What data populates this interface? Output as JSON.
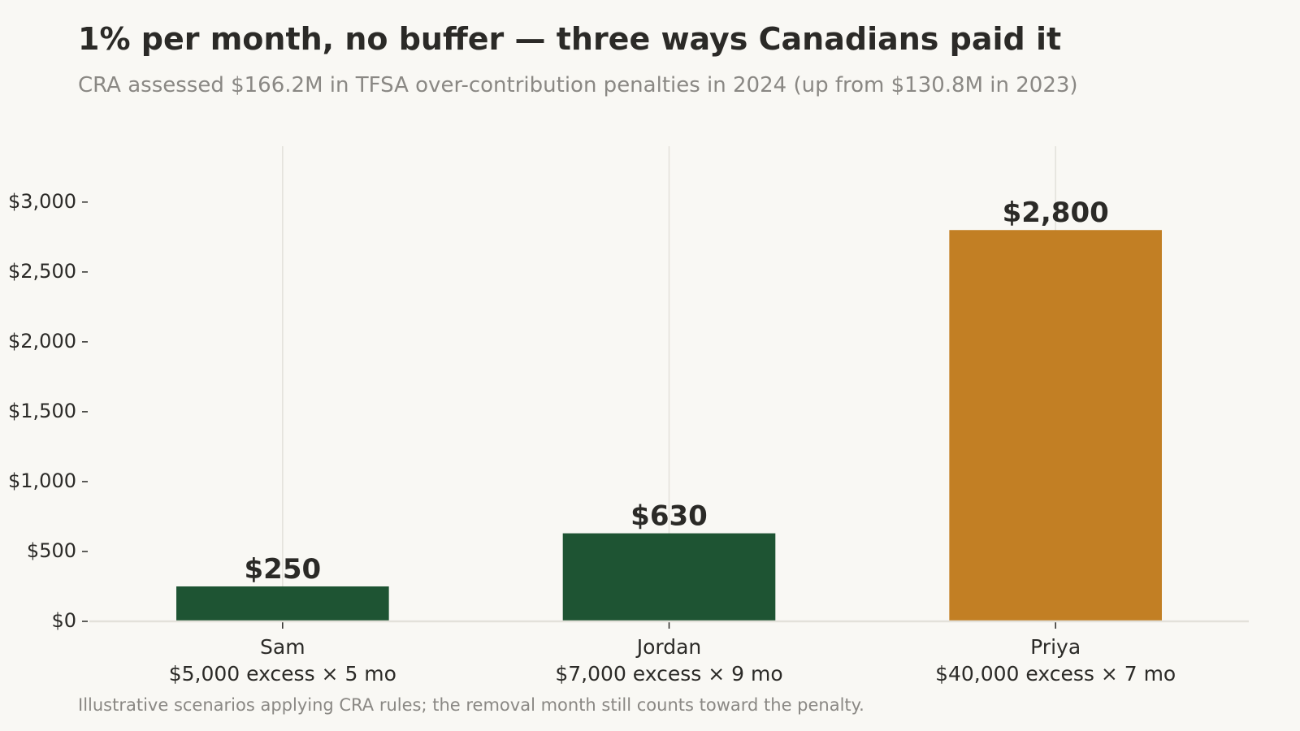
{
  "chart_data": {
    "type": "bar",
    "title": "1% per month, no buffer — three ways Canadians paid it",
    "subtitle": "CRA assessed $166.2M in TFSA over-contribution penalties in 2024 (up from $130.8M in 2023)",
    "footnote": "Illustrative scenarios applying CRA rules; the removal month still counts toward the penalty.",
    "categories": [
      "Sam",
      "Jordan",
      "Priya"
    ],
    "category_sublabels": [
      "$5,000 excess × 5 mo",
      "$7,000 excess × 9 mo",
      "$40,000 excess × 7 mo"
    ],
    "values": [
      250,
      630,
      2800
    ],
    "value_labels": [
      "$250",
      "$630",
      "$2,800"
    ],
    "bar_colors": [
      "#1e5433",
      "#1e5433",
      "#c27f24"
    ],
    "yticks": [
      0,
      500,
      1000,
      1500,
      2000,
      2500,
      3000
    ],
    "ytick_labels": [
      "$0",
      "$500",
      "$1,000",
      "$1,500",
      "$2,000",
      "$2,500",
      "$3,000"
    ],
    "ylim": [
      0,
      3400
    ],
    "xlabel": "",
    "ylabel": "",
    "grid": "vertical",
    "legend": "none"
  }
}
